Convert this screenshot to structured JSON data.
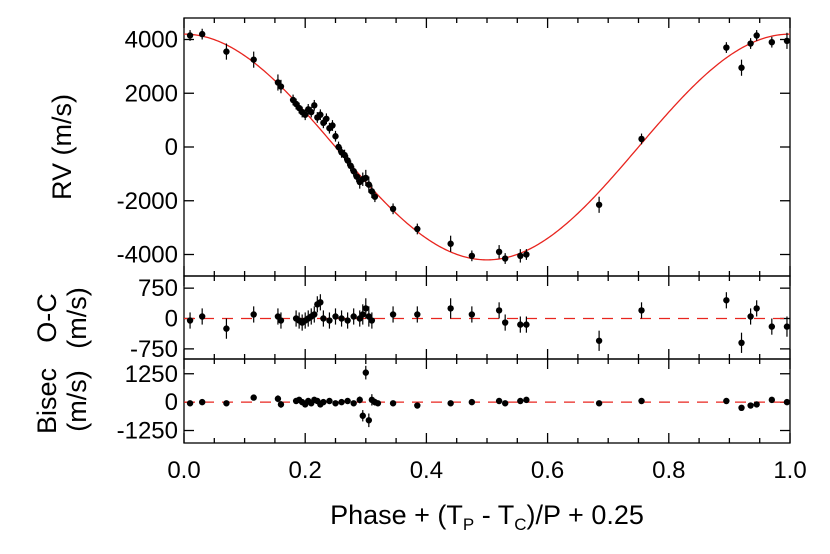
{
  "chart_data": [
    {
      "type": "scatter",
      "panel": "rv",
      "ylabel": "RV (m/s)",
      "xlim": [
        0.0,
        1.0
      ],
      "ylim": [
        -4800,
        4800
      ],
      "yticks": [
        "4000",
        "2000",
        "0",
        "-2000",
        "-4000"
      ],
      "ytick_values": [
        4000,
        2000,
        0,
        -2000,
        -4000
      ],
      "model": {
        "amplitude": 4200,
        "line_color": "#e8251f"
      },
      "series": [
        {
          "marker_color": "#000000",
          "x": [
            0.01,
            0.03,
            0.07,
            0.115,
            0.155,
            0.16,
            0.18,
            0.185,
            0.19,
            0.195,
            0.2,
            0.205,
            0.21,
            0.215,
            0.22,
            0.225,
            0.23,
            0.235,
            0.24,
            0.245,
            0.25,
            0.255,
            0.26,
            0.265,
            0.27,
            0.275,
            0.28,
            0.285,
            0.29,
            0.295,
            0.3,
            0.305,
            0.31,
            0.315,
            0.345,
            0.385,
            0.44,
            0.475,
            0.52,
            0.53,
            0.555,
            0.565,
            0.685,
            0.755,
            0.895,
            0.92,
            0.935,
            0.945,
            0.97,
            0.995
          ],
          "y": [
            4150,
            4200,
            3550,
            3250,
            2400,
            2250,
            1750,
            1600,
            1450,
            1300,
            1200,
            1400,
            1300,
            1550,
            1100,
            1200,
            900,
            1050,
            700,
            800,
            400,
            0,
            -200,
            -300,
            -500,
            -700,
            -900,
            -1100,
            -1300,
            -1200,
            -1150,
            -1400,
            -1650,
            -1850,
            -2300,
            -3050,
            -3600,
            -4050,
            -3900,
            -4150,
            -4050,
            -4000,
            -2150,
            300,
            3700,
            2950,
            3850,
            4150,
            3900,
            3950
          ],
          "err": [
            200,
            200,
            300,
            300,
            300,
            250,
            200,
            200,
            200,
            200,
            200,
            200,
            200,
            200,
            200,
            200,
            200,
            200,
            200,
            200,
            200,
            200,
            200,
            200,
            200,
            200,
            200,
            200,
            250,
            250,
            300,
            300,
            250,
            200,
            200,
            200,
            300,
            200,
            250,
            200,
            250,
            200,
            300,
            200,
            200,
            300,
            200,
            200,
            200,
            300
          ]
        }
      ]
    },
    {
      "type": "scatter",
      "panel": "residuals",
      "ylabel": "O-C",
      "ylabel_units": "(m/s)",
      "xlim": [
        0.0,
        1.0
      ],
      "ylim": [
        -1000,
        1050
      ],
      "yticks": [
        "750",
        "0",
        "-750"
      ],
      "ytick_values": [
        750,
        0,
        -750
      ],
      "zero_line_color": "#e8251f",
      "series": [
        {
          "marker_color": "#000000",
          "x": [
            0.01,
            0.03,
            0.07,
            0.115,
            0.155,
            0.16,
            0.185,
            0.19,
            0.195,
            0.2,
            0.205,
            0.21,
            0.215,
            0.22,
            0.225,
            0.23,
            0.24,
            0.25,
            0.26,
            0.27,
            0.28,
            0.29,
            0.295,
            0.3,
            0.305,
            0.31,
            0.345,
            0.385,
            0.44,
            0.475,
            0.52,
            0.53,
            0.555,
            0.565,
            0.685,
            0.755,
            0.895,
            0.92,
            0.935,
            0.945,
            0.97,
            0.995
          ],
          "y": [
            -50,
            50,
            -250,
            100,
            50,
            -50,
            0,
            -50,
            -100,
            -50,
            0,
            50,
            100,
            350,
            400,
            0,
            -50,
            50,
            0,
            -50,
            50,
            0,
            100,
            250,
            50,
            -50,
            100,
            100,
            250,
            100,
            200,
            -100,
            -150,
            -150,
            -550,
            200,
            450,
            -600,
            50,
            250,
            -200,
            -200
          ],
          "err": [
            200,
            200,
            250,
            200,
            200,
            200,
            200,
            200,
            200,
            200,
            200,
            200,
            200,
            200,
            200,
            200,
            200,
            200,
            200,
            200,
            200,
            200,
            250,
            250,
            250,
            200,
            200,
            200,
            250,
            200,
            200,
            200,
            200,
            200,
            250,
            200,
            200,
            250,
            200,
            200,
            200,
            250
          ]
        }
      ]
    },
    {
      "type": "scatter",
      "panel": "bisector",
      "ylabel": "Bisec",
      "ylabel_units": "(m/s)",
      "xlabel": "Phase + (T",
      "xlabel_sub1": "P",
      "xlabel_mid": " - T",
      "xlabel_sub2": "C",
      "xlabel_end": ")/P + 0.25",
      "xlim": [
        0.0,
        1.0
      ],
      "ylim": [
        -1800,
        1900
      ],
      "yticks": [
        "1250",
        "0",
        "-1250"
      ],
      "ytick_values": [
        1250,
        0,
        -1250
      ],
      "xticks": [
        "0.0",
        "0.2",
        "0.4",
        "0.6",
        "0.8",
        "1.0"
      ],
      "xtick_values": [
        0.0,
        0.2,
        0.4,
        0.6,
        0.8,
        1.0
      ],
      "zero_line_color": "#e8251f",
      "series": [
        {
          "marker_color": "#000000",
          "x": [
            0.01,
            0.03,
            0.07,
            0.115,
            0.155,
            0.16,
            0.185,
            0.19,
            0.195,
            0.2,
            0.205,
            0.21,
            0.215,
            0.22,
            0.225,
            0.23,
            0.24,
            0.25,
            0.26,
            0.27,
            0.28,
            0.29,
            0.295,
            0.3,
            0.305,
            0.31,
            0.315,
            0.32,
            0.345,
            0.385,
            0.44,
            0.475,
            0.52,
            0.53,
            0.555,
            0.565,
            0.685,
            0.755,
            0.895,
            0.92,
            0.935,
            0.945,
            0.97,
            0.995
          ],
          "y": [
            -50,
            0,
            -50,
            200,
            150,
            -100,
            50,
            100,
            0,
            -100,
            50,
            -50,
            100,
            50,
            -100,
            0,
            50,
            -50,
            0,
            50,
            -50,
            100,
            -600,
            1300,
            -800,
            100,
            0,
            -50,
            -50,
            -150,
            -50,
            0,
            50,
            -50,
            50,
            100,
            -50,
            50,
            50,
            -250,
            -150,
            -100,
            100,
            0
          ],
          "err": [
            100,
            100,
            100,
            120,
            150,
            150,
            120,
            120,
            120,
            120,
            120,
            120,
            120,
            120,
            120,
            120,
            120,
            120,
            120,
            120,
            120,
            150,
            250,
            300,
            300,
            250,
            150,
            120,
            120,
            120,
            120,
            100,
            100,
            100,
            100,
            100,
            100,
            100,
            100,
            120,
            120,
            100,
            100,
            100
          ]
        }
      ]
    }
  ]
}
